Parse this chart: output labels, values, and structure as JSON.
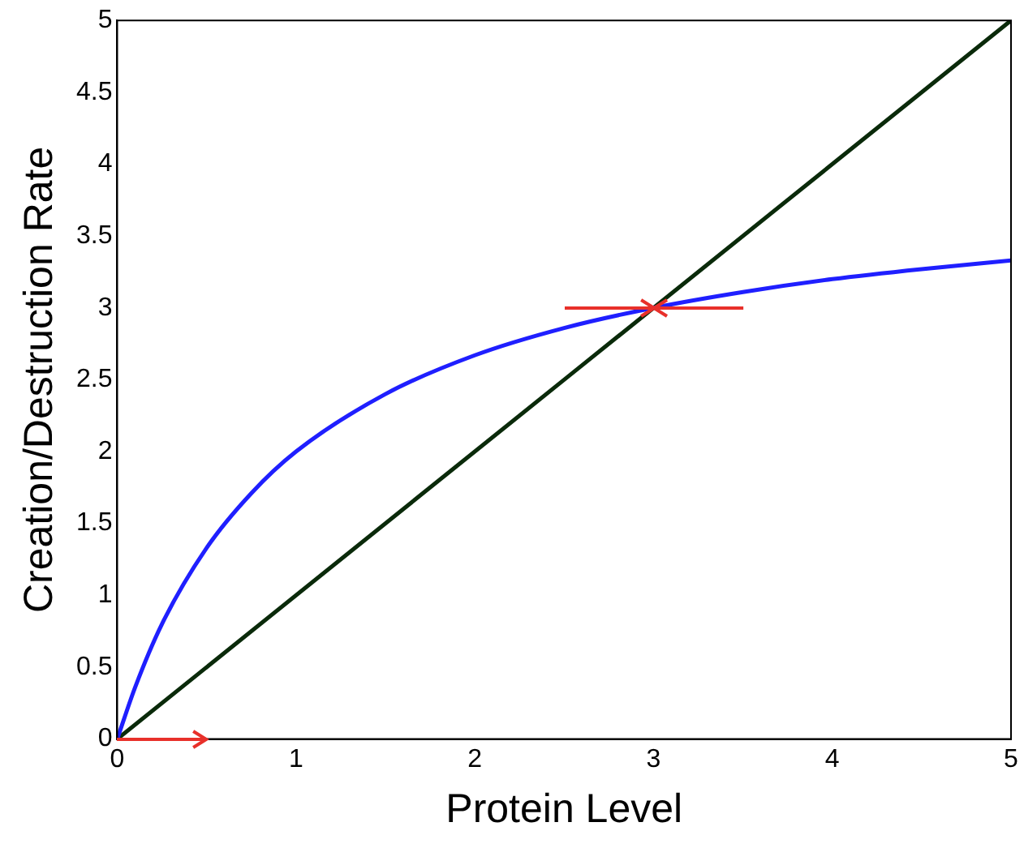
{
  "chart_data": {
    "type": "line",
    "xlabel": "Protein Level",
    "ylabel": "Creation/Destruction Rate",
    "xlim": [
      0,
      5
    ],
    "ylim": [
      0,
      5
    ],
    "xticks": [
      0,
      1,
      2,
      3,
      4,
      5
    ],
    "yticks": [
      0,
      0.5,
      1,
      1.5,
      2,
      2.5,
      3,
      3.5,
      4,
      4.5,
      5
    ],
    "grid": false,
    "legend": false,
    "marker": "none",
    "line_style": "solid",
    "series": [
      {
        "color": "#1f1fff",
        "x": [
          0,
          0.1,
          0.25,
          0.5,
          0.75,
          1,
          1.5,
          2,
          2.5,
          3,
          3.5,
          4,
          4.5,
          5
        ],
        "values": [
          0,
          0.36,
          0.8,
          1.33,
          1.71,
          2,
          2.4,
          2.67,
          2.86,
          3,
          3.11,
          3.2,
          3.27,
          3.33
        ]
      },
      {
        "color": "#0a2a0a",
        "x": [
          0,
          5
        ],
        "values": [
          0,
          5
        ]
      }
    ]
  }
}
